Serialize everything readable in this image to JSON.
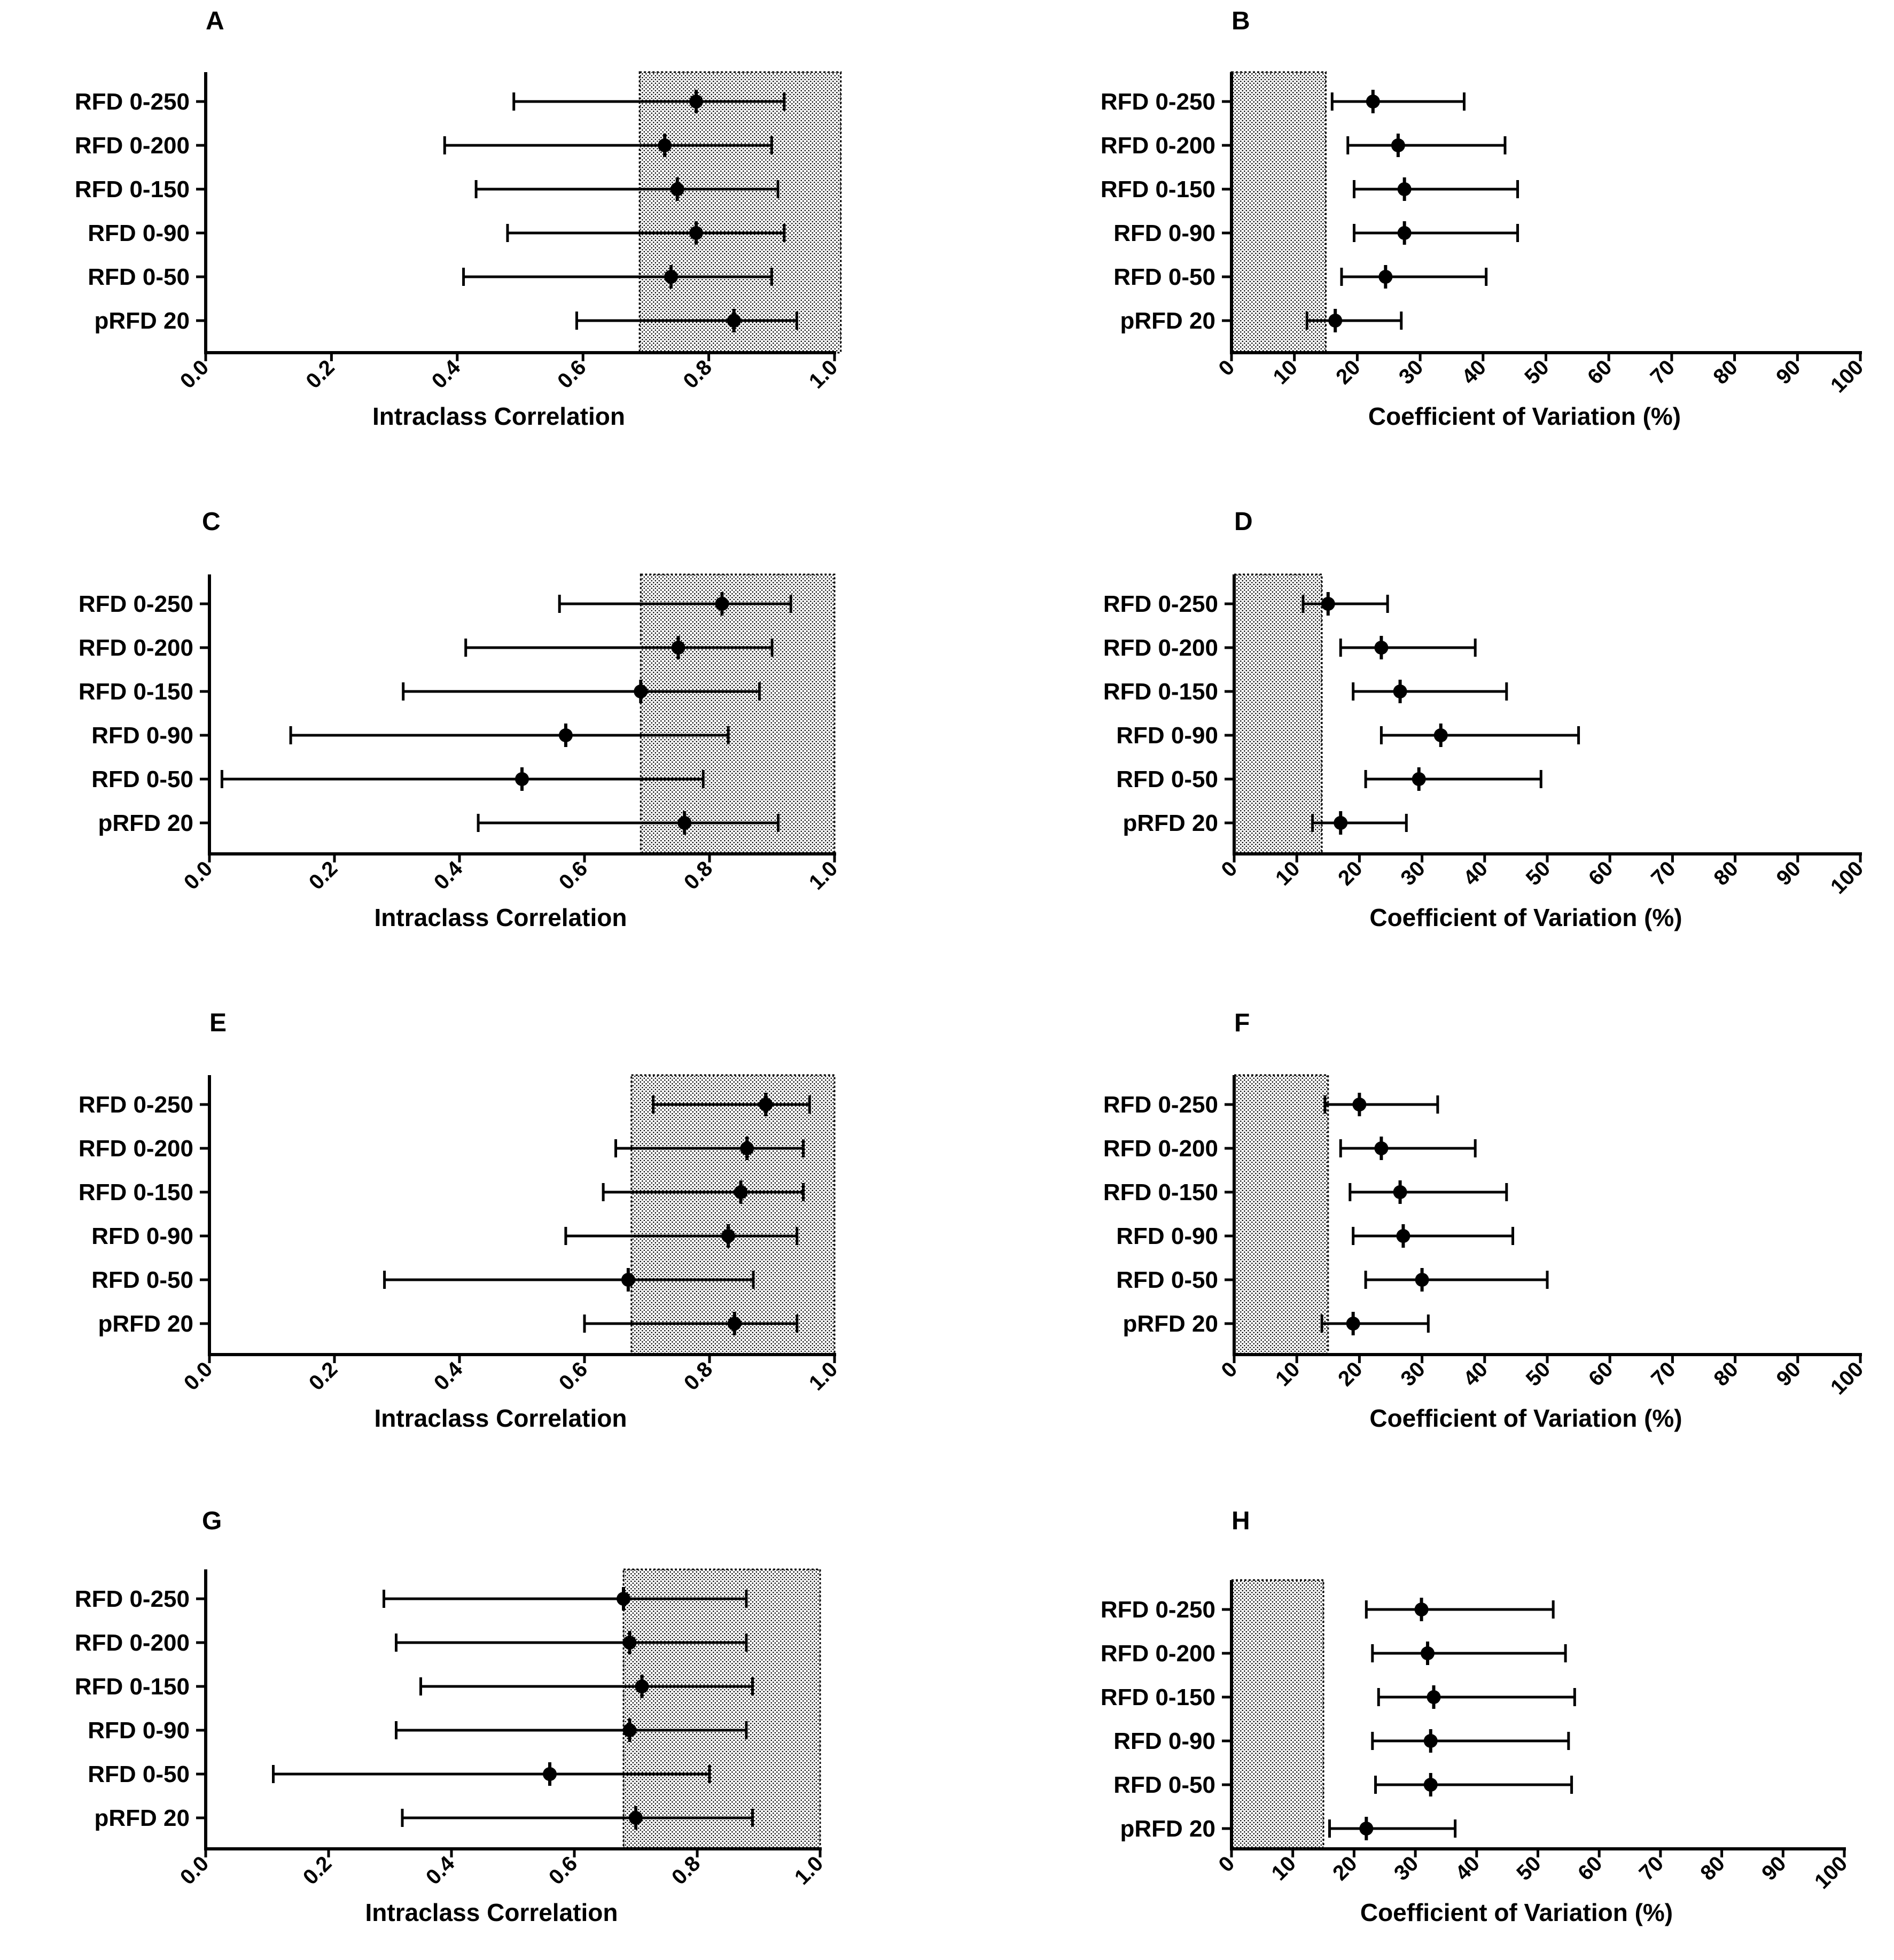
{
  "colors": {
    "ink": "#000000",
    "background": "#ffffff",
    "shade": "#dddddd"
  },
  "chart_data": [
    {
      "panel": "A",
      "type": "forest",
      "xlabel": "Intraclass Correlation",
      "xlim": [
        0,
        1
      ],
      "ticks": [
        "0.0",
        "0.2",
        "0.4",
        "0.6",
        "0.8",
        "1.0"
      ],
      "tick_values": [
        0,
        0.2,
        0.4,
        0.6,
        0.8,
        1.0
      ],
      "shaded_region": [
        0.69,
        1.01
      ],
      "categories": [
        "RFD 0-250",
        "RFD 0-200",
        "RFD 0-150",
        "RFD 0-90",
        "RFD 0-50",
        "pRFD 20"
      ],
      "estimate": [
        0.78,
        0.73,
        0.75,
        0.78,
        0.74,
        0.84
      ],
      "lower": [
        0.49,
        0.38,
        0.43,
        0.48,
        0.41,
        0.59
      ],
      "upper": [
        0.92,
        0.9,
        0.91,
        0.92,
        0.9,
        0.94
      ]
    },
    {
      "panel": "B",
      "type": "forest",
      "xlabel": "Coefficient of Variation (%)",
      "xlim": [
        0,
        100
      ],
      "ticks": [
        "0",
        "10",
        "20",
        "30",
        "40",
        "50",
        "60",
        "70",
        "80",
        "90",
        "100"
      ],
      "tick_values": [
        0,
        10,
        20,
        30,
        40,
        50,
        60,
        70,
        80,
        90,
        100
      ],
      "shaded_region": [
        0,
        15
      ],
      "categories": [
        "RFD 0-250",
        "RFD 0-200",
        "RFD 0-150",
        "RFD 0-90",
        "RFD 0-50",
        "pRFD 20"
      ],
      "estimate": [
        22.5,
        26.5,
        27.5,
        27.5,
        24.5,
        16.5
      ],
      "lower": [
        16,
        18.5,
        19.5,
        19.5,
        17.5,
        12
      ],
      "upper": [
        37,
        43.5,
        45.5,
        45.5,
        40.5,
        27
      ]
    },
    {
      "panel": "C",
      "type": "forest",
      "xlabel": "Intraclass Correlation",
      "xlim": [
        0,
        1
      ],
      "ticks": [
        "0.0",
        "0.2",
        "0.4",
        "0.6",
        "0.8",
        "1.0"
      ],
      "tick_values": [
        0,
        0.2,
        0.4,
        0.6,
        0.8,
        1.0
      ],
      "shaded_region": [
        0.69,
        1.0
      ],
      "categories": [
        "RFD 0-250",
        "RFD 0-200",
        "RFD 0-150",
        "RFD 0-90",
        "RFD 0-50",
        "pRFD 20"
      ],
      "estimate": [
        0.82,
        0.75,
        0.69,
        0.57,
        0.5,
        0.76
      ],
      "lower": [
        0.56,
        0.41,
        0.31,
        0.13,
        0.02,
        0.43
      ],
      "upper": [
        0.93,
        0.9,
        0.88,
        0.83,
        0.79,
        0.91
      ]
    },
    {
      "panel": "D",
      "type": "forest",
      "xlabel": "Coefficient of Variation (%)",
      "xlim": [
        0,
        100
      ],
      "ticks": [
        "0",
        "10",
        "20",
        "30",
        "40",
        "50",
        "60",
        "70",
        "80",
        "90",
        "100"
      ],
      "tick_values": [
        0,
        10,
        20,
        30,
        40,
        50,
        60,
        70,
        80,
        90,
        100
      ],
      "shaded_region": [
        0,
        14
      ],
      "categories": [
        "RFD 0-250",
        "RFD 0-200",
        "RFD 0-150",
        "RFD 0-90",
        "RFD 0-50",
        "pRFD 20"
      ],
      "estimate": [
        15,
        23.5,
        26.5,
        33,
        29.5,
        17
      ],
      "lower": [
        11,
        17,
        19,
        23.5,
        21,
        12.5
      ],
      "upper": [
        24.5,
        38.5,
        43.5,
        55,
        49,
        27.5
      ]
    },
    {
      "panel": "E",
      "type": "forest",
      "xlabel": "Intraclass Correlation",
      "xlim": [
        0,
        1
      ],
      "ticks": [
        "0.0",
        "0.2",
        "0.4",
        "0.6",
        "0.8",
        "1.0"
      ],
      "tick_values": [
        0,
        0.2,
        0.4,
        0.6,
        0.8,
        1.0
      ],
      "shaded_region": [
        0.675,
        1.0
      ],
      "categories": [
        "RFD 0-250",
        "RFD 0-200",
        "RFD 0-150",
        "RFD 0-90",
        "RFD 0-50",
        "pRFD 20"
      ],
      "estimate": [
        0.89,
        0.86,
        0.85,
        0.83,
        0.67,
        0.84
      ],
      "lower": [
        0.71,
        0.65,
        0.63,
        0.57,
        0.28,
        0.6
      ],
      "upper": [
        0.96,
        0.95,
        0.95,
        0.94,
        0.87,
        0.94
      ]
    },
    {
      "panel": "F",
      "type": "forest",
      "xlabel": "Coefficient of Variation (%)",
      "xlim": [
        0,
        100
      ],
      "ticks": [
        "0",
        "10",
        "20",
        "30",
        "40",
        "50",
        "60",
        "70",
        "80",
        "90",
        "100"
      ],
      "tick_values": [
        0,
        10,
        20,
        30,
        40,
        50,
        60,
        70,
        80,
        90,
        100
      ],
      "shaded_region": [
        0,
        15
      ],
      "categories": [
        "RFD 0-250",
        "RFD 0-200",
        "RFD 0-150",
        "RFD 0-90",
        "RFD 0-50",
        "pRFD 20"
      ],
      "estimate": [
        20,
        23.5,
        26.5,
        27,
        30,
        19
      ],
      "lower": [
        14.5,
        17,
        18.5,
        19,
        21,
        14
      ],
      "upper": [
        32.5,
        38.5,
        43.5,
        44.5,
        50,
        31
      ]
    },
    {
      "panel": "G",
      "type": "forest",
      "xlabel": "Intraclass Correlation",
      "xlim": [
        0,
        1
      ],
      "ticks": [
        "0.0",
        "0.2",
        "0.4",
        "0.6",
        "0.8",
        "1.0"
      ],
      "tick_values": [
        0,
        0.2,
        0.4,
        0.6,
        0.8,
        1.0
      ],
      "shaded_region": [
        0.68,
        1.0
      ],
      "categories": [
        "RFD 0-250",
        "RFD 0-200",
        "RFD 0-150",
        "RFD 0-90",
        "RFD 0-50",
        "pRFD 20"
      ],
      "estimate": [
        0.68,
        0.69,
        0.71,
        0.69,
        0.56,
        0.7
      ],
      "lower": [
        0.29,
        0.31,
        0.35,
        0.31,
        0.11,
        0.32
      ],
      "upper": [
        0.88,
        0.88,
        0.89,
        0.88,
        0.82,
        0.89
      ]
    },
    {
      "panel": "H",
      "type": "forest",
      "xlabel": "Coefficient of Variation (%)",
      "xlim": [
        0,
        100
      ],
      "ticks": [
        "0",
        "10",
        "20",
        "30",
        "40",
        "50",
        "60",
        "70",
        "80",
        "90",
        "100"
      ],
      "tick_values": [
        0,
        10,
        20,
        30,
        40,
        50,
        60,
        70,
        80,
        90,
        100
      ],
      "shaded_region": [
        0,
        15
      ],
      "categories": [
        "RFD 0-250",
        "RFD 0-200",
        "RFD 0-150",
        "RFD 0-90",
        "RFD 0-50",
        "pRFD 20"
      ],
      "estimate": [
        31,
        32,
        33,
        32.5,
        32.5,
        22
      ],
      "lower": [
        22,
        23,
        24,
        23,
        23.5,
        16
      ],
      "upper": [
        52.5,
        54.5,
        56,
        55,
        55.5,
        36.5
      ]
    }
  ]
}
